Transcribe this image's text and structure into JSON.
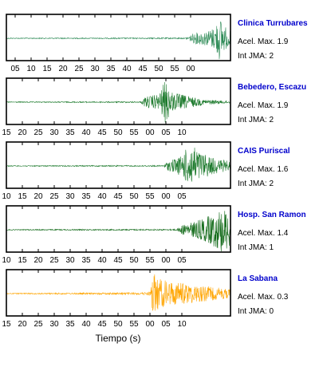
{
  "chart_data": {
    "type": "line",
    "xlabel": "Tiempo (s)",
    "accel_label": "Acel. Max.",
    "jma_label": "Int JMA:",
    "panels": [
      {
        "station": "Clinica Turrubares",
        "acel_max": "1.9",
        "int_jma": "2",
        "color": "#2e8b57",
        "tick_labels": [
          "05",
          "10",
          "15",
          "20",
          "25",
          "30",
          "35",
          "40",
          "45",
          "50",
          "55",
          "00"
        ],
        "trace": [
          [
            0,
            0.02
          ],
          [
            80,
            0.03
          ],
          [
            84,
            0.25
          ],
          [
            90,
            0.35
          ],
          [
            93,
            0.5
          ],
          [
            95,
            1.0
          ],
          [
            97,
            0.6
          ],
          [
            100,
            0.3
          ]
        ]
      },
      {
        "station": "Bebedero, Escazu",
        "acel_max": "1.9",
        "int_jma": "2",
        "color": "#1e7b2e",
        "tick_labels": [
          "15",
          "20",
          "25",
          "30",
          "35",
          "40",
          "45",
          "50",
          "55",
          "00",
          "05",
          "10"
        ],
        "trace": [
          [
            0,
            0.02
          ],
          [
            60,
            0.03
          ],
          [
            62,
            0.25
          ],
          [
            68,
            0.35
          ],
          [
            71,
            1.0
          ],
          [
            74,
            0.45
          ],
          [
            80,
            0.3
          ],
          [
            88,
            0.12
          ],
          [
            100,
            0.05
          ]
        ]
      },
      {
        "station": "CAIS Puriscal",
        "acel_max": "1.6",
        "int_jma": "2",
        "color": "#1e7b2e",
        "tick_labels": [
          "10",
          "15",
          "20",
          "25",
          "30",
          "35",
          "40",
          "45",
          "50",
          "55",
          "00",
          "05"
        ],
        "trace": [
          [
            0,
            0.02
          ],
          [
            70,
            0.03
          ],
          [
            72,
            0.2
          ],
          [
            78,
            0.45
          ],
          [
            82,
            1.0
          ],
          [
            87,
            0.6
          ],
          [
            93,
            0.35
          ],
          [
            100,
            0.2
          ]
        ]
      },
      {
        "station": "Hosp. San Ramon",
        "acel_max": "1.4",
        "int_jma": "1",
        "color": "#136b1a",
        "tick_labels": [
          "10",
          "15",
          "20",
          "25",
          "30",
          "35",
          "40",
          "45",
          "50",
          "55",
          "00",
          "05"
        ],
        "trace": [
          [
            0,
            0.02
          ],
          [
            76,
            0.03
          ],
          [
            78,
            0.2
          ],
          [
            85,
            0.4
          ],
          [
            91,
            0.65
          ],
          [
            96,
            1.0
          ],
          [
            100,
            0.8
          ]
        ]
      },
      {
        "station": "La Sabana",
        "acel_max": "0.3",
        "int_jma": "0",
        "color": "#ffa500",
        "tick_labels": [
          "15",
          "20",
          "25",
          "30",
          "35",
          "40",
          "45",
          "50",
          "55",
          "00",
          "05",
          "10"
        ],
        "trace": [
          [
            0,
            0.02
          ],
          [
            40,
            0.04
          ],
          [
            60,
            0.05
          ],
          [
            64,
            0.08
          ],
          [
            65,
            1.0
          ],
          [
            70,
            0.6
          ],
          [
            78,
            0.5
          ],
          [
            88,
            0.35
          ],
          [
            100,
            0.2
          ]
        ]
      }
    ]
  }
}
